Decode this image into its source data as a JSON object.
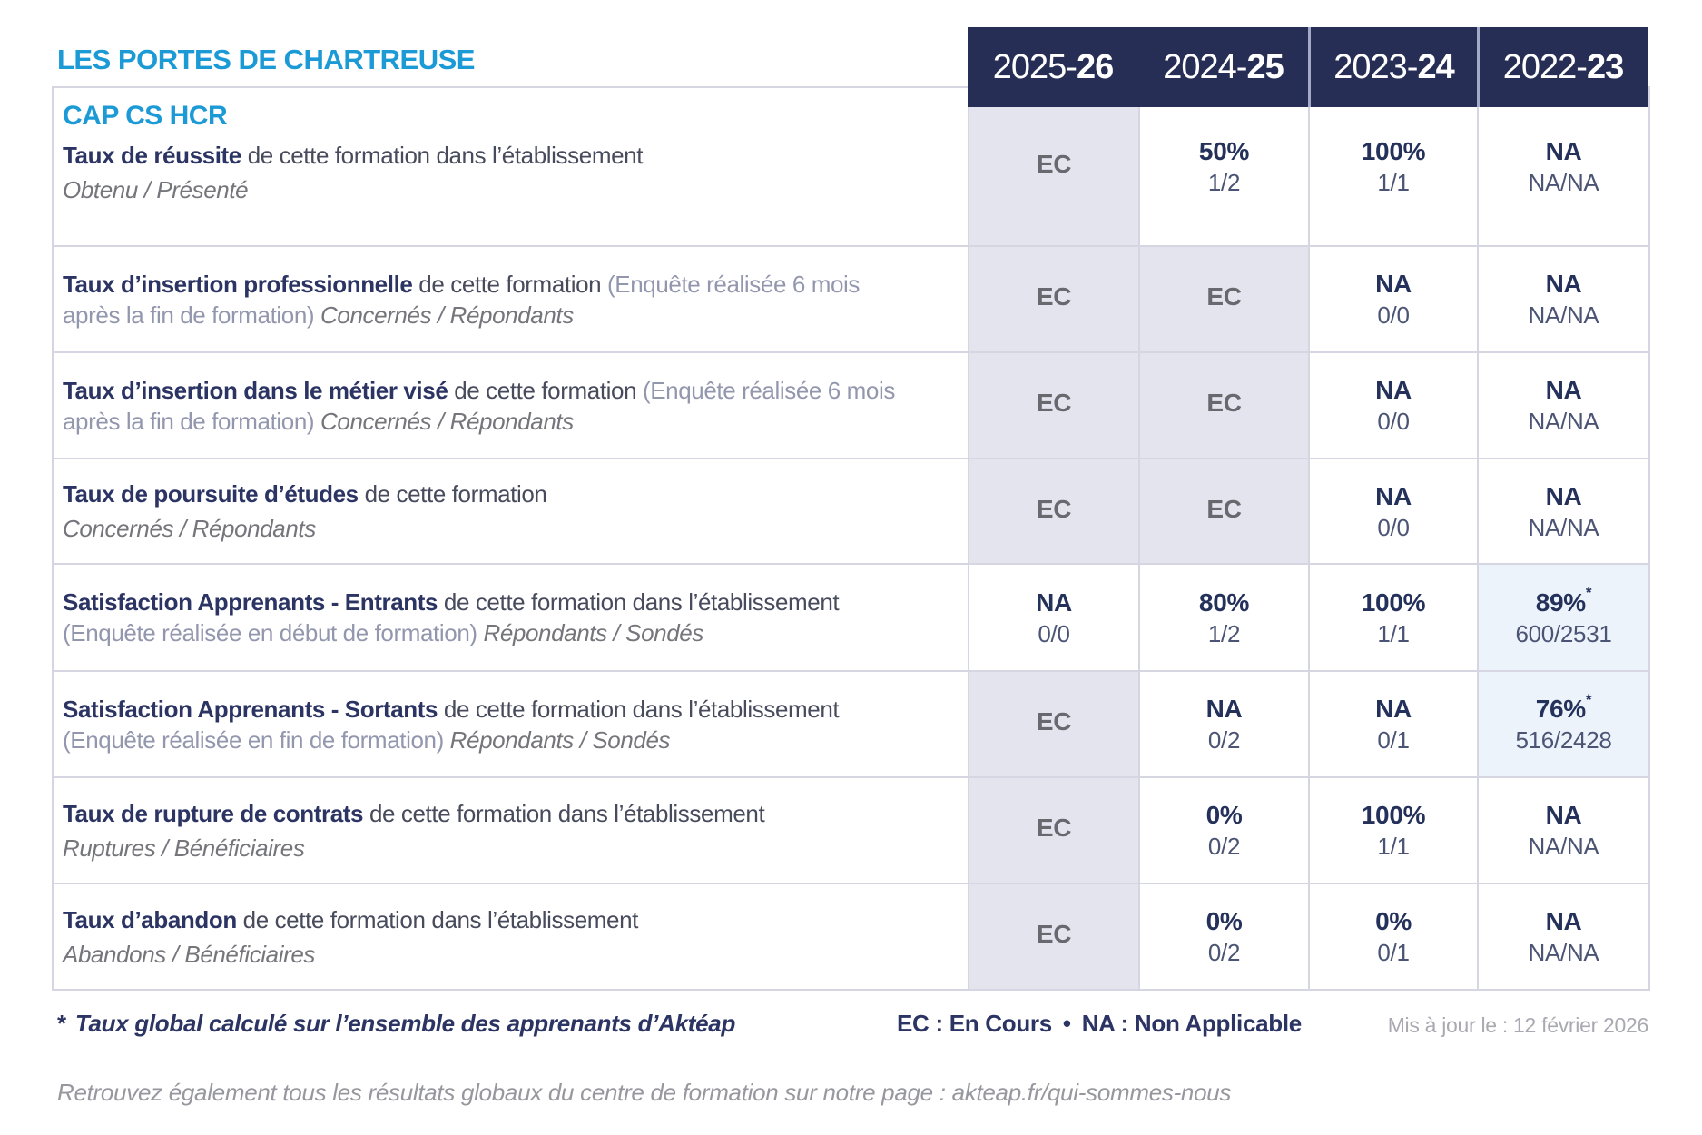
{
  "org": "LES PORTES DE CHARTREUSE",
  "program": "CAP CS HCR",
  "year_columns": [
    {
      "prefix": "2025-",
      "suffix": "26"
    },
    {
      "prefix": "2024-",
      "suffix": "25"
    },
    {
      "prefix": "2023-",
      "suffix": "24"
    },
    {
      "prefix": "2022-",
      "suffix": "23"
    }
  ],
  "rows": [
    {
      "title": "Taux de réussite",
      "desc": "de cette formation dans l’établissement",
      "sub": "Obtenu / Présenté",
      "values": [
        {
          "main": "EC",
          "sub": ""
        },
        {
          "main": "50%",
          "sub": "1/2"
        },
        {
          "main": "100%",
          "sub": "1/1"
        },
        {
          "main": "NA",
          "sub": "NA/NA"
        }
      ]
    },
    {
      "title": "Taux d’insertion professionnelle",
      "desc": "de cette formation",
      "paren": "(Enquête réalisée 6 mois après la fin de formation)",
      "sub": "Concernés / Répondants",
      "values": [
        {
          "main": "EC",
          "sub": ""
        },
        {
          "main": "EC",
          "sub": ""
        },
        {
          "main": "NA",
          "sub": "0/0"
        },
        {
          "main": "NA",
          "sub": "NA/NA"
        }
      ]
    },
    {
      "title": "Taux d’insertion dans le métier visé",
      "desc": "de cette formation",
      "paren": "(Enquête réalisée 6 mois après la fin de formation)",
      "sub": "Concernés / Répondants",
      "values": [
        {
          "main": "EC",
          "sub": ""
        },
        {
          "main": "EC",
          "sub": ""
        },
        {
          "main": "NA",
          "sub": "0/0"
        },
        {
          "main": "NA",
          "sub": "NA/NA"
        }
      ]
    },
    {
      "title": "Taux de poursuite d’études",
      "desc": "de cette formation",
      "sub": "Concernés / Répondants",
      "values": [
        {
          "main": "EC",
          "sub": ""
        },
        {
          "main": "EC",
          "sub": ""
        },
        {
          "main": "NA",
          "sub": "0/0"
        },
        {
          "main": "NA",
          "sub": "NA/NA"
        }
      ]
    },
    {
      "title": "Satisfaction Apprenants - Entrants",
      "desc": "de cette formation dans l’établissement",
      "paren": "(Enquête réalisée en début de formation)",
      "sub": "Répondants / Sondés",
      "values": [
        {
          "main": "NA",
          "sub": "0/0"
        },
        {
          "main": "80%",
          "sub": "1/2"
        },
        {
          "main": "100%",
          "sub": "1/1"
        },
        {
          "main": "89%",
          "star": "*",
          "sub": "600/2531"
        }
      ]
    },
    {
      "title": "Satisfaction Apprenants - Sortants",
      "desc": "de cette formation dans l’établissement",
      "paren": "(Enquête réalisée en fin de formation)",
      "sub": "Répondants / Sondés",
      "values": [
        {
          "main": "EC",
          "sub": ""
        },
        {
          "main": "NA",
          "sub": "0/2"
        },
        {
          "main": "NA",
          "sub": "0/1"
        },
        {
          "main": "76%",
          "star": "*",
          "sub": "516/2428"
        }
      ]
    },
    {
      "title": "Taux de rupture de contrats",
      "desc": "de cette formation dans l’établissement",
      "sub": "Ruptures / Bénéficiaires",
      "values": [
        {
          "main": "EC",
          "sub": ""
        },
        {
          "main": "0%",
          "sub": "0/2"
        },
        {
          "main": "100%",
          "sub": "1/1"
        },
        {
          "main": "NA",
          "sub": "NA/NA"
        }
      ]
    },
    {
      "title": "Taux d’abandon",
      "desc": "de cette formation dans l’établissement",
      "sub": "Abandons / Bénéficiaires",
      "values": [
        {
          "main": "EC",
          "sub": ""
        },
        {
          "main": "0%",
          "sub": "0/2"
        },
        {
          "main": "0%",
          "sub": "0/1"
        },
        {
          "main": "NA",
          "sub": "NA/NA"
        }
      ]
    }
  ],
  "footer": {
    "star": "*",
    "note": "Taux global calculé sur l’ensemble des apprenants d’Aktéap",
    "legend_ec": "EC : En Cours",
    "legend_sep": "•",
    "legend_na": "NA : Non Applicable",
    "updated": "Mis à jour le : 12 février 2026"
  },
  "bottom": {
    "text": "Retrouvez également tous les résultats globaux du centre de formation sur notre page : ",
    "url": "akteap.fr/qui-sommes-nous"
  },
  "colors": {
    "brand_blue": "#1b9ad6",
    "header_navy": "#272e56",
    "value_navy": "#24315b",
    "ec_cell_background": "#e4e4ef",
    "highlight_cell_background": "#ecf3fa",
    "border": "#d6d6e3"
  }
}
